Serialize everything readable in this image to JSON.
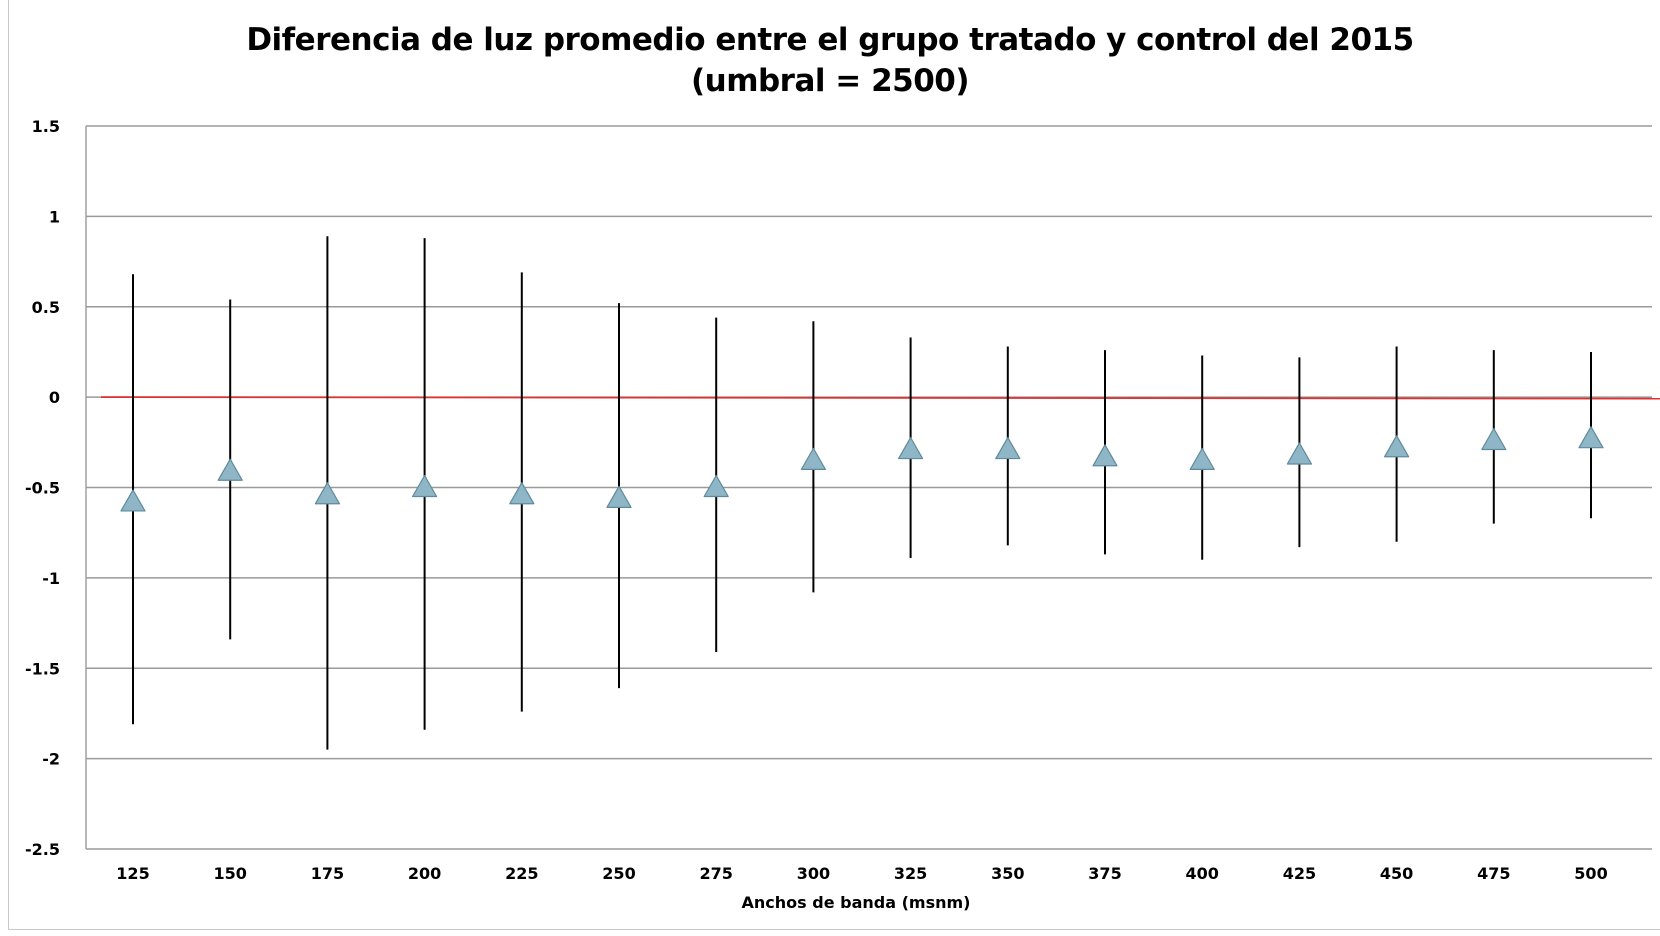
{
  "chart_data": {
    "type": "scatter",
    "title": "Diferencia de luz promedio entre el grupo tratado y control del 2015",
    "subtitle": "(umbral = 2500)",
    "xlabel": "Anchos de banda (msnm)",
    "ylabel": "",
    "categories": [
      "125",
      "150",
      "175",
      "200",
      "225",
      "250",
      "275",
      "300",
      "325",
      "350",
      "375",
      "400",
      "425",
      "450",
      "475",
      "500"
    ],
    "ylim": [
      -2.5,
      1.5
    ],
    "yticks": [
      1.5,
      1,
      0.5,
      0,
      -0.5,
      -1,
      -1.5,
      -2,
      -2.5
    ],
    "ytick_labels": [
      "1.5",
      "1",
      "0.5",
      "0",
      "-0.5",
      "-1",
      "-1.5",
      "-2",
      "-2.5"
    ],
    "grid": true,
    "series": [
      {
        "values": [
          -0.58,
          -0.41,
          -0.54,
          -0.5,
          -0.54,
          -0.56,
          -0.5,
          -0.35,
          -0.29,
          -0.29,
          -0.33,
          -0.35,
          -0.32,
          -0.28,
          -0.24,
          -0.23
        ],
        "upper": [
          0.68,
          0.54,
          0.89,
          0.88,
          0.69,
          0.52,
          0.44,
          0.42,
          0.33,
          0.28,
          0.26,
          0.23,
          0.22,
          0.28,
          0.26,
          0.25
        ],
        "lower": [
          -1.81,
          -1.34,
          -1.95,
          -1.84,
          -1.74,
          -1.61,
          -1.41,
          -1.08,
          -0.89,
          -0.82,
          -0.87,
          -0.9,
          -0.83,
          -0.8,
          -0.7,
          -0.67
        ],
        "marker": "triangle",
        "color": "#8fb6c6"
      }
    ],
    "reference_line": {
      "y": 0,
      "color": "#e03030"
    },
    "colors": {
      "gridline": "#9a9a9a",
      "errorbar": "#000000",
      "marker_fill": "#8fb6c6",
      "marker_edge": "#5f8a9c"
    }
  }
}
